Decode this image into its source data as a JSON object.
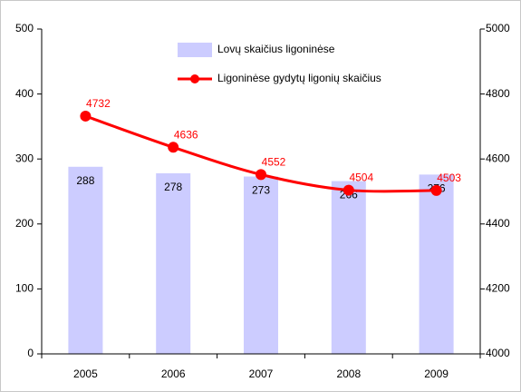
{
  "chart_data": {
    "type": "bar-line",
    "categories": [
      "2005",
      "2006",
      "2007",
      "2008",
      "2009"
    ],
    "series": [
      {
        "name": "Lovų skaičius ligoninėse",
        "type": "bar",
        "color": "#ccccff",
        "values": [
          288,
          278,
          273,
          266,
          276
        ]
      },
      {
        "name": "Ligoninėse gydytų ligonių skaičius",
        "type": "line",
        "color": "#ff0000",
        "axis": "y2",
        "values": [
          4732,
          4636,
          4552,
          4504,
          4503
        ]
      }
    ],
    "ylim": [
      0,
      500
    ],
    "yticks": [
      0,
      100,
      200,
      300,
      400,
      500
    ],
    "y2lim": [
      4000,
      5000
    ],
    "y2ticks": [
      4000,
      4200,
      4400,
      4600,
      4800,
      5000
    ],
    "legend": "top"
  }
}
